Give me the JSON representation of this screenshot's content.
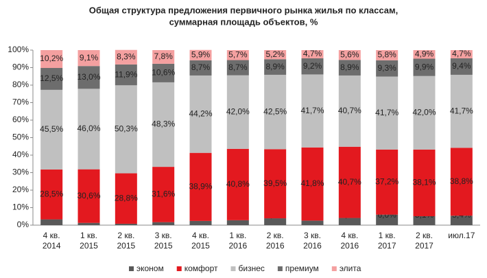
{
  "chart_data": {
    "type": "stacked_bar",
    "title": "Общая структура  предложения первичного рынка жилья по классам,",
    "subtitle": "суммарная площадь объектов, %",
    "categories": [
      "4 кв. 2014",
      "1 кв. 2015",
      "2 кв. 2015",
      "3 кв. 2015",
      "4 кв. 2015",
      "1 кв. 2016",
      "2 кв. 2016",
      "3 кв. 2016",
      "4 кв. 2016",
      "1 кв. 2017",
      "2 кв. 2017",
      "июл.17"
    ],
    "series": [
      {
        "name": "эконом",
        "color": "#595959",
        "values": [
          3.3,
          1.3,
          0.8,
          1.7,
          2.4,
          2.8,
          3.9,
          2.6,
          4.1,
          6.0,
          5.1,
          5.4
        ],
        "value_labels": [
          "3,3%",
          "1,3%",
          "0,8%",
          "1,7%",
          "2,4%",
          "2,8%",
          "3,9%",
          "2,6%",
          "4,1%",
          "6,0%",
          "5,1%",
          "5,4%"
        ]
      },
      {
        "name": "комфорт",
        "color": "#e3191f",
        "values": [
          28.5,
          30.6,
          28.8,
          31.6,
          38.9,
          40.8,
          39.5,
          41.8,
          40.7,
          37.2,
          38.1,
          38.8
        ],
        "value_labels": [
          "28,5%",
          "30,6%",
          "28,8%",
          "31,6%",
          "38,9%",
          "40,8%",
          "39,5%",
          "41,8%",
          "40,7%",
          "37,2%",
          "38,1%",
          "38,8%"
        ]
      },
      {
        "name": "бизнес",
        "color": "#c0c0c0",
        "values": [
          45.5,
          46.0,
          50.3,
          48.3,
          44.2,
          42.0,
          42.5,
          41.7,
          40.7,
          41.7,
          42.0,
          41.7
        ],
        "value_labels": [
          "45,5%",
          "46,0%",
          "50,3%",
          "48,3%",
          "44,2%",
          "42,0%",
          "42,5%",
          "41,7%",
          "40,7%",
          "41,7%",
          "42,0%",
          "41,7%"
        ]
      },
      {
        "name": "премиум",
        "color": "#6d6d6d",
        "values": [
          12.5,
          13.0,
          11.9,
          10.6,
          8.7,
          8.7,
          8.9,
          9.2,
          8.9,
          9.3,
          9.9,
          9.4
        ],
        "value_labels": [
          "12,5%",
          "13,0%",
          "11,9%",
          "10,6%",
          "8,7%",
          "8,7%",
          "8,9%",
          "9,2%",
          "8,9%",
          "9,3%",
          "9,9%",
          "9,4%"
        ]
      },
      {
        "name": "элита",
        "color": "#f4a0a0",
        "values": [
          10.2,
          9.1,
          8.3,
          7.8,
          5.9,
          5.7,
          5.2,
          4.7,
          5.6,
          5.8,
          4.9,
          4.7
        ],
        "value_labels": [
          "10,2%",
          "9,1%",
          "8,3%",
          "7,8%",
          "5,9%",
          "5,7%",
          "5,2%",
          "4,7%",
          "5,6%",
          "5,8%",
          "4,9%",
          "4,7%"
        ]
      }
    ],
    "ylim": [
      0,
      100
    ],
    "yticks": [
      {
        "value": 0,
        "label": "0%"
      },
      {
        "value": 10,
        "label": "10%"
      },
      {
        "value": 20,
        "label": "20%"
      },
      {
        "value": 30,
        "label": "30%"
      },
      {
        "value": 40,
        "label": "40%"
      },
      {
        "value": 50,
        "label": "50%"
      },
      {
        "value": 60,
        "label": "60%"
      },
      {
        "value": 70,
        "label": "70%"
      },
      {
        "value": 80,
        "label": "80%"
      },
      {
        "value": 90,
        "label": "90%"
      },
      {
        "value": 100,
        "label": "100%"
      }
    ],
    "grid": false,
    "legend": "bottom"
  }
}
